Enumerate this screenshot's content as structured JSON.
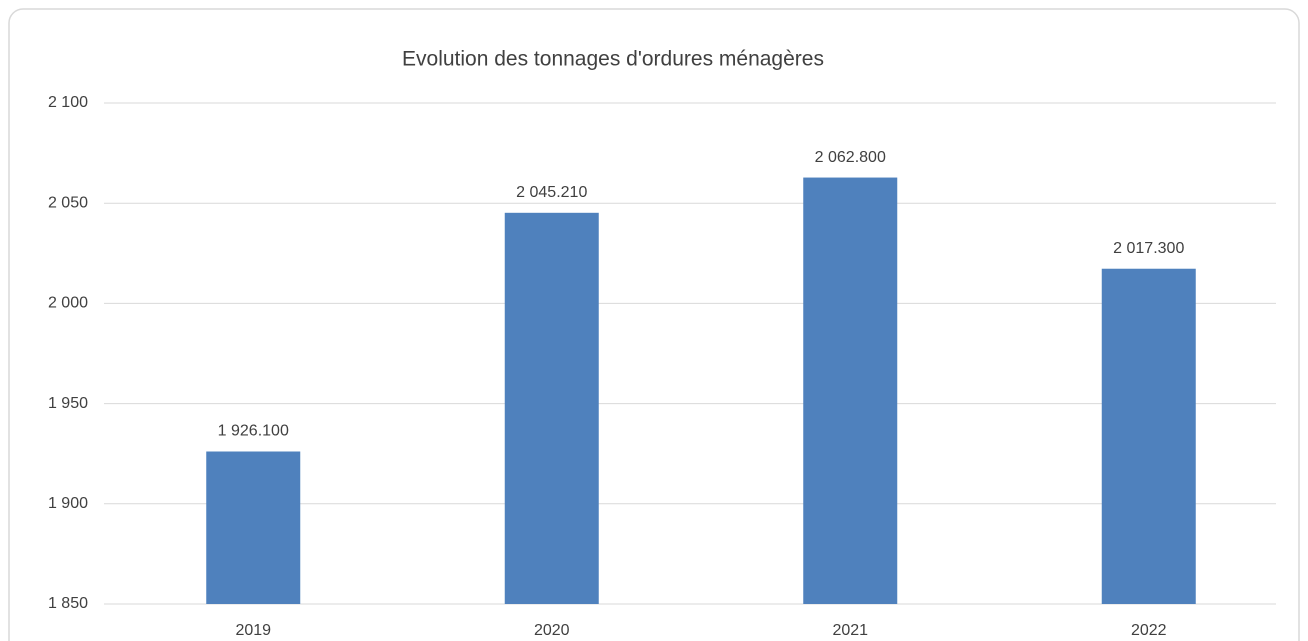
{
  "chart_data": {
    "type": "bar",
    "title": "Evolution des tonnages d'ordures ménagères",
    "categories": [
      "2019",
      "2020",
      "2021",
      "2022"
    ],
    "values": [
      1926.1,
      2045.21,
      2062.8,
      2017.3
    ],
    "value_labels": [
      "1 926.100",
      "2 045.210",
      "2 062.800",
      "2 017.300"
    ],
    "color": "#4f81bd",
    "ylim": [
      1850,
      2100
    ],
    "yticks": [
      {
        "value": 1850,
        "label": "1 850"
      },
      {
        "value": 1900,
        "label": "1 900"
      },
      {
        "value": 1950,
        "label": "1 950"
      },
      {
        "value": 2000,
        "label": "2 000"
      },
      {
        "value": 2050,
        "label": "2 050"
      },
      {
        "value": 2100,
        "label": "2 100"
      }
    ],
    "grid": true
  }
}
